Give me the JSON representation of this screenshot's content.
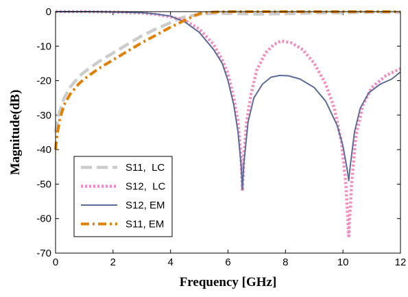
{
  "chart_data": {
    "type": "line",
    "title": "",
    "xlabel": "Frequency [GHz]",
    "ylabel": "Magnitude(dB)",
    "xlim": [
      0,
      12
    ],
    "ylim": [
      -70,
      0
    ],
    "xticks": [
      0,
      2,
      4,
      6,
      8,
      10,
      12
    ],
    "yticks": [
      0,
      -10,
      -20,
      -30,
      -40,
      -50,
      -60,
      -70
    ],
    "grid": false,
    "legend_position": "bottom-left",
    "series": [
      {
        "name": "S11,  LC",
        "color": "#cccccc",
        "style": "dashed",
        "x": [
          0,
          0.1,
          0.3,
          0.5,
          0.8,
          1,
          1.5,
          2,
          2.5,
          3,
          3.5,
          4,
          4.3,
          4.5,
          5,
          5.5,
          6,
          7,
          8,
          9,
          10,
          11,
          12
        ],
        "y": [
          -35,
          -30,
          -25,
          -22,
          -19,
          -17.5,
          -14.5,
          -12,
          -9.5,
          -7,
          -5,
          -3.2,
          -2,
          -1.5,
          -0.8,
          -0.5,
          -0.5,
          -0.7,
          -0.6,
          -0.4,
          -0.3,
          -0.2,
          -0.2
        ]
      },
      {
        "name": "S12,  LC",
        "color": "#f48cc0",
        "style": "dotted",
        "x": [
          0,
          1,
          2,
          3,
          3.5,
          4,
          4.5,
          5,
          5.5,
          5.8,
          6,
          6.2,
          6.35,
          6.45,
          6.5,
          6.55,
          6.65,
          6.8,
          7,
          7.3,
          7.6,
          7.85,
          8.2,
          8.6,
          9,
          9.4,
          9.7,
          9.95,
          10.1,
          10.2,
          10.3,
          10.45,
          10.7,
          11,
          11.5,
          12
        ],
        "y": [
          0,
          0,
          -0.1,
          -0.4,
          -0.8,
          -1.5,
          -2.5,
          -5,
          -9.5,
          -14,
          -18,
          -25,
          -32,
          -42,
          -52,
          -42,
          -32,
          -24,
          -17,
          -12,
          -9.5,
          -8.5,
          -9,
          -11,
          -15,
          -21,
          -28,
          -38,
          -50,
          -65,
          -50,
          -36,
          -27,
          -22,
          -18.5,
          -16.5
        ]
      },
      {
        "name": "S12, EM",
        "color": "#5a6a99",
        "style": "solid",
        "x": [
          0,
          1,
          2,
          3,
          3.5,
          4,
          4.5,
          5,
          5.5,
          5.8,
          6,
          6.2,
          6.35,
          6.45,
          6.5,
          6.55,
          6.7,
          6.9,
          7.2,
          7.5,
          7.8,
          8.1,
          8.5,
          9,
          9.4,
          9.8,
          10,
          10.15,
          10.2,
          10.25,
          10.4,
          10.6,
          10.9,
          11.3,
          11.7,
          12
        ],
        "y": [
          0,
          0,
          -0.1,
          -0.3,
          -0.7,
          -1.3,
          -3,
          -6,
          -11,
          -15,
          -20,
          -27,
          -35,
          -44,
          -51.5,
          -44,
          -32,
          -25,
          -21,
          -19,
          -18.5,
          -18.6,
          -19.5,
          -22,
          -26,
          -33,
          -39,
          -46,
          -49,
          -45,
          -35,
          -28,
          -23.5,
          -21,
          -19.5,
          -17.5
        ]
      },
      {
        "name": "S11, EM",
        "color": "#e27e00",
        "style": "dashdot",
        "x": [
          0,
          0.05,
          0.15,
          0.3,
          0.5,
          0.8,
          1,
          1.5,
          2,
          2.5,
          3,
          3.5,
          4,
          4.5,
          4.8,
          5,
          5.3,
          5.6,
          6,
          7,
          8,
          9,
          10,
          11,
          12
        ],
        "y": [
          -40,
          -36,
          -31,
          -27,
          -24,
          -21,
          -19.5,
          -16.5,
          -14,
          -11.5,
          -9,
          -6.8,
          -4.5,
          -2.5,
          -1.3,
          -0.6,
          -0.2,
          -0.1,
          0,
          0,
          0,
          0,
          0,
          0,
          0
        ]
      }
    ]
  }
}
